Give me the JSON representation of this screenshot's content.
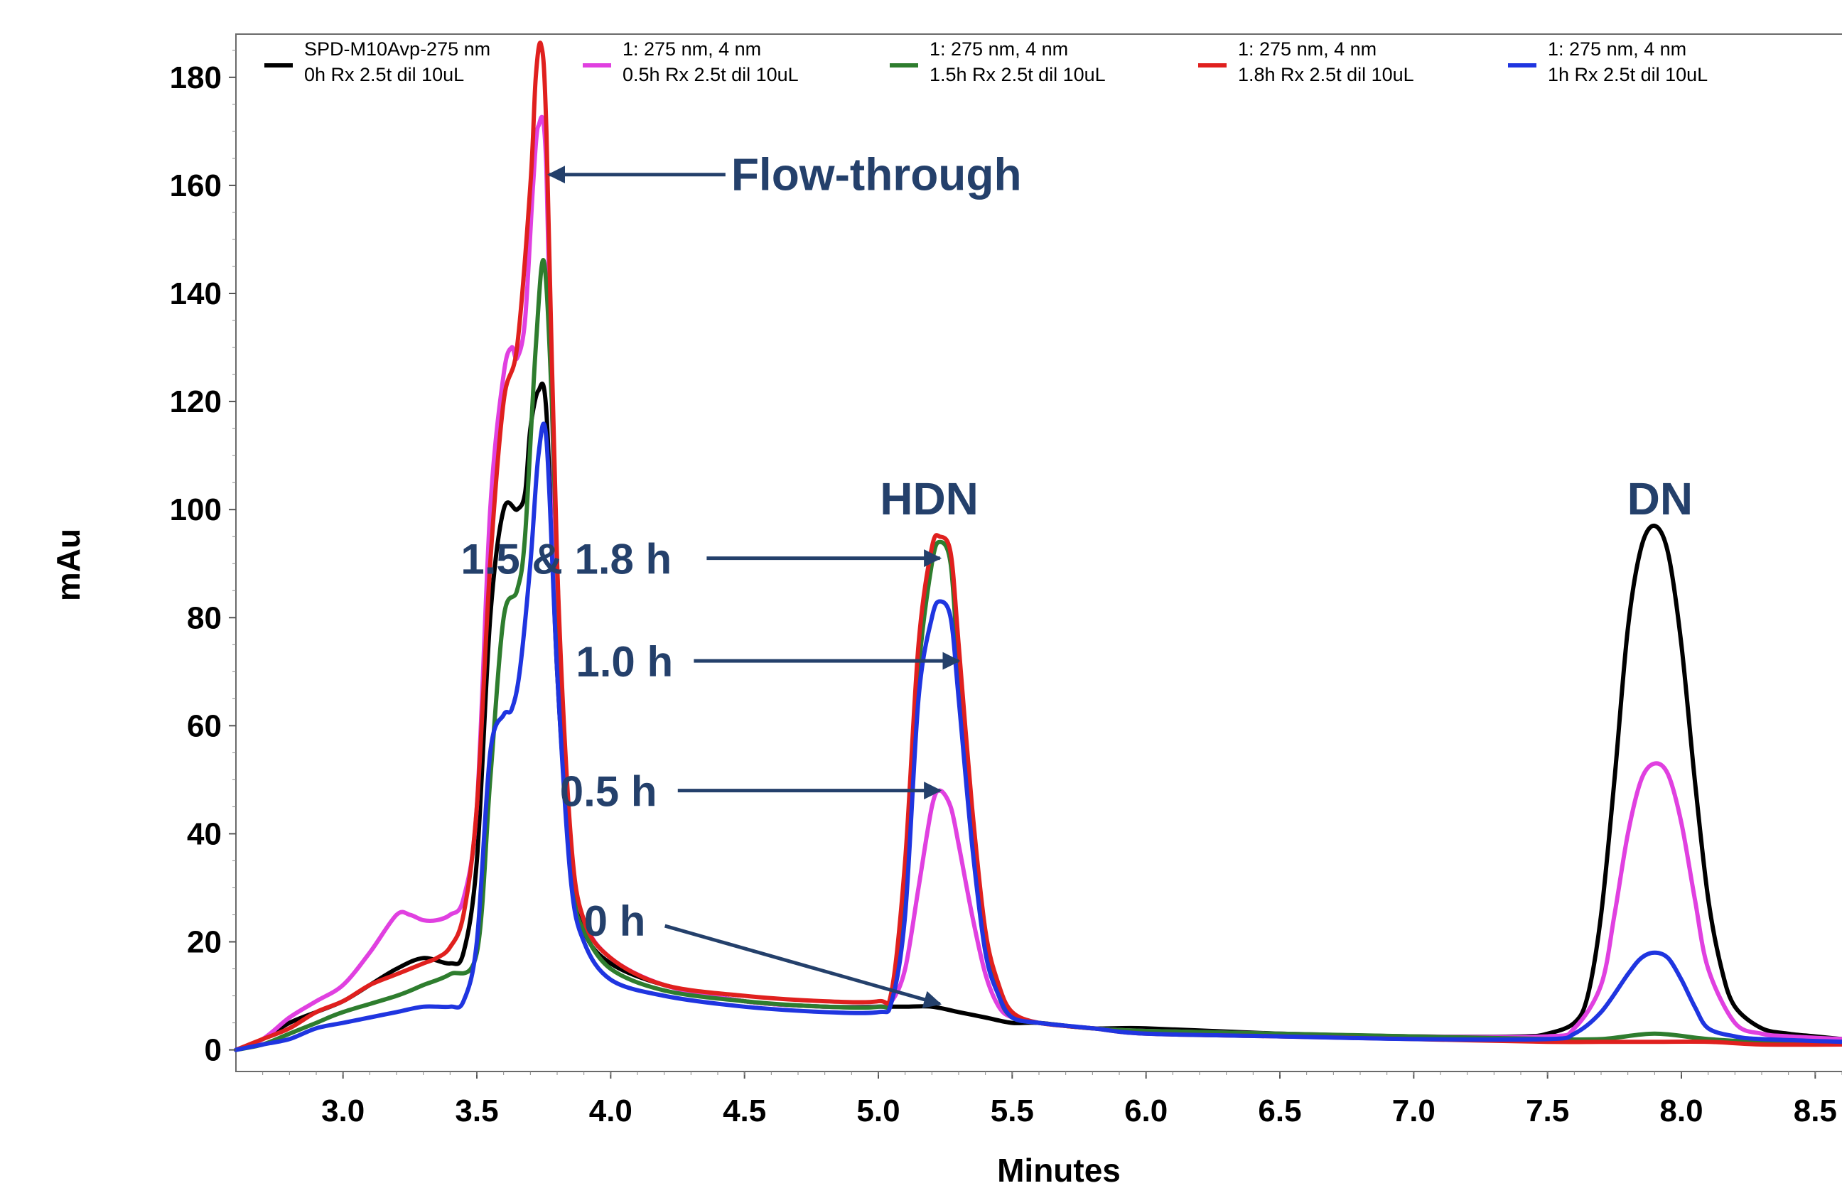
{
  "chart_data": {
    "type": "line",
    "xlabel": "Minutes",
    "ylabel": "mAu",
    "xlim": [
      2.6,
      8.6
    ],
    "ylim": [
      -4,
      188
    ],
    "xticks": [
      "3.0",
      "3.5",
      "4.0",
      "4.5",
      "5.0",
      "5.5",
      "6.0",
      "6.5",
      "7.0",
      "7.5",
      "8.0",
      "8.5"
    ],
    "xtick_values": [
      3.0,
      3.5,
      4.0,
      4.5,
      5.0,
      5.5,
      6.0,
      6.5,
      7.0,
      7.5,
      8.0,
      8.5
    ],
    "yticks": [
      "0",
      "20",
      "40",
      "60",
      "80",
      "100",
      "120",
      "140",
      "160",
      "180"
    ],
    "ytick_values": [
      0,
      20,
      40,
      60,
      80,
      100,
      120,
      140,
      160,
      180
    ],
    "grid": false,
    "legend_position": "top",
    "legend": [
      {
        "line1": "SPD-M10Avp-275 nm",
        "line2": "0h Rx 2.5t dil 10uL",
        "color": "#000000"
      },
      {
        "line1": "1: 275 nm, 4 nm",
        "line2": "0.5h Rx 2.5t dil 10uL",
        "color": "#e040e0"
      },
      {
        "line1": "1: 275 nm, 4 nm",
        "line2": "1.5h Rx 2.5t dil 10uL",
        "color": "#2e7d2e"
      },
      {
        "line1": "1: 275 nm, 4 nm",
        "line2": "1.8h Rx 2.5t dil 10uL",
        "color": "#e0201e"
      },
      {
        "line1": "1: 275 nm, 4 nm",
        "line2": "1h Rx 2.5t dil 10uL",
        "color": "#1f35e0"
      }
    ],
    "series": [
      {
        "color": "#000000",
        "x": [
          2.6,
          2.7,
          2.8,
          2.9,
          3.0,
          3.1,
          3.2,
          3.3,
          3.4,
          3.45,
          3.5,
          3.55,
          3.6,
          3.65,
          3.68,
          3.7,
          3.73,
          3.76,
          3.8,
          3.85,
          3.9,
          4.0,
          4.2,
          4.5,
          4.8,
          5.0,
          5.1,
          5.2,
          5.3,
          5.4,
          5.5,
          5.6,
          5.8,
          6.0,
          6.5,
          7.0,
          7.4,
          7.5,
          7.6,
          7.65,
          7.7,
          7.75,
          7.8,
          7.85,
          7.9,
          7.95,
          8.0,
          8.05,
          8.1,
          8.15,
          8.2,
          8.3,
          8.4,
          8.5,
          8.6
        ],
        "y": [
          0,
          2,
          5,
          7,
          9,
          12,
          15,
          17,
          16,
          18,
          35,
          80,
          100,
          100,
          103,
          115,
          122,
          118,
          70,
          35,
          22,
          16,
          12,
          9,
          8,
          8,
          8,
          8,
          7,
          6,
          5,
          5,
          4,
          4,
          3,
          2.5,
          2.5,
          3,
          5,
          10,
          25,
          50,
          78,
          93,
          97,
          92,
          75,
          50,
          28,
          15,
          8,
          4,
          3,
          2.5,
          2
        ]
      },
      {
        "color": "#e040e0",
        "x": [
          2.6,
          2.7,
          2.8,
          2.9,
          3.0,
          3.1,
          3.2,
          3.25,
          3.3,
          3.35,
          3.4,
          3.45,
          3.5,
          3.55,
          3.6,
          3.63,
          3.65,
          3.68,
          3.71,
          3.73,
          3.76,
          3.8,
          3.85,
          3.9,
          4.0,
          4.2,
          4.5,
          4.8,
          5.0,
          5.05,
          5.1,
          5.15,
          5.2,
          5.23,
          5.27,
          5.3,
          5.35,
          5.4,
          5.45,
          5.5,
          5.6,
          5.8,
          6.0,
          6.5,
          7.0,
          7.5,
          7.6,
          7.7,
          7.75,
          7.8,
          7.85,
          7.9,
          7.95,
          8.0,
          8.05,
          8.1,
          8.2,
          8.3,
          8.4,
          8.6
        ],
        "y": [
          0,
          2,
          6,
          9,
          12,
          18,
          25,
          25,
          24,
          24,
          25,
          28,
          45,
          100,
          125,
          130,
          128,
          135,
          160,
          171,
          163,
          80,
          38,
          24,
          17,
          12,
          9,
          8,
          8,
          9,
          15,
          30,
          45,
          48,
          45,
          38,
          25,
          14,
          8,
          6,
          5,
          4,
          3.5,
          3,
          2.5,
          2.5,
          4,
          12,
          25,
          40,
          50,
          53,
          51,
          42,
          28,
          15,
          5,
          3,
          2.5,
          2
        ]
      },
      {
        "color": "#2e7d2e",
        "x": [
          2.6,
          2.7,
          2.8,
          2.9,
          3.0,
          3.2,
          3.3,
          3.4,
          3.5,
          3.55,
          3.6,
          3.65,
          3.68,
          3.72,
          3.75,
          3.78,
          3.82,
          3.86,
          3.9,
          4.0,
          4.2,
          4.5,
          4.8,
          5.0,
          5.05,
          5.1,
          5.15,
          5.2,
          5.23,
          5.27,
          5.3,
          5.35,
          5.4,
          5.45,
          5.5,
          5.6,
          5.8,
          6.0,
          6.5,
          7.0,
          7.5,
          7.7,
          7.9,
          8.1,
          8.3,
          8.6
        ],
        "y": [
          0,
          1,
          3,
          5,
          7,
          10,
          12,
          14,
          18,
          50,
          80,
          85,
          95,
          130,
          146,
          120,
          60,
          30,
          22,
          15,
          11,
          9,
          8,
          8,
          10,
          30,
          70,
          90,
          94,
          90,
          70,
          40,
          20,
          10,
          6,
          5,
          4,
          3.5,
          3,
          2.5,
          2,
          2,
          3,
          2,
          1.5,
          1.5
        ]
      },
      {
        "color": "#e0201e",
        "x": [
          2.6,
          2.7,
          2.8,
          2.9,
          3.0,
          3.1,
          3.2,
          3.3,
          3.35,
          3.4,
          3.45,
          3.5,
          3.55,
          3.6,
          3.65,
          3.7,
          3.72,
          3.74,
          3.76,
          3.8,
          3.85,
          3.9,
          4.0,
          4.2,
          4.5,
          4.8,
          5.0,
          5.05,
          5.1,
          5.15,
          5.2,
          5.23,
          5.27,
          5.3,
          5.35,
          5.4,
          5.45,
          5.5,
          5.6,
          5.8,
          6.0,
          6.5,
          7.0,
          7.5,
          7.7,
          7.9,
          8.1,
          8.3,
          8.6
        ],
        "y": [
          0,
          2,
          4,
          7,
          9,
          12,
          14,
          16,
          17,
          19,
          25,
          45,
          90,
          120,
          130,
          160,
          180,
          186,
          170,
          90,
          40,
          24,
          17,
          12,
          10,
          9,
          9,
          11,
          35,
          75,
          93,
          95,
          92,
          75,
          45,
          22,
          12,
          7,
          5,
          4,
          3,
          2.5,
          2,
          1.5,
          1.5,
          1.5,
          1.5,
          1,
          1
        ]
      },
      {
        "color": "#1f35e0",
        "x": [
          2.6,
          2.7,
          2.8,
          2.9,
          3.0,
          3.1,
          3.2,
          3.3,
          3.4,
          3.45,
          3.5,
          3.55,
          3.6,
          3.63,
          3.66,
          3.7,
          3.73,
          3.76,
          3.8,
          3.85,
          3.9,
          4.0,
          4.2,
          4.5,
          4.8,
          5.0,
          5.05,
          5.1,
          5.15,
          5.2,
          5.23,
          5.27,
          5.3,
          5.35,
          5.4,
          5.45,
          5.5,
          5.6,
          5.8,
          6.0,
          6.5,
          7.0,
          7.5,
          7.6,
          7.7,
          7.8,
          7.85,
          7.9,
          7.95,
          8.0,
          8.05,
          8.1,
          8.2,
          8.3,
          8.6
        ],
        "y": [
          0,
          1,
          2,
          4,
          5,
          6,
          7,
          8,
          8,
          9,
          20,
          55,
          62,
          63,
          70,
          90,
          110,
          113,
          70,
          32,
          20,
          13,
          10,
          8,
          7,
          7,
          9,
          25,
          65,
          80,
          83,
          80,
          65,
          38,
          18,
          10,
          6,
          5,
          4,
          3,
          2.5,
          2,
          2,
          3,
          7,
          14,
          17,
          18,
          17,
          13,
          8,
          4,
          2.5,
          2,
          1.5
        ]
      }
    ],
    "annotations": [
      {
        "text": "Flow-through",
        "x": 4.45,
        "y": 162,
        "arrow_to": [
          3.77,
          162
        ]
      },
      {
        "text": "HDN",
        "x": 5.19,
        "y": 102
      },
      {
        "text": "DN",
        "x": 7.92,
        "y": 102
      },
      {
        "text": "1.5 & 1.8 h",
        "x": 3.44,
        "y": 91,
        "arrow_to": [
          5.23,
          91
        ]
      },
      {
        "text": "1.0 h",
        "x": 3.87,
        "y": 72,
        "arrow_to": [
          5.3,
          72
        ]
      },
      {
        "text": "0.5 h",
        "x": 3.81,
        "y": 48,
        "arrow_to": [
          5.23,
          48
        ]
      },
      {
        "text": "0 h",
        "x": 3.9,
        "y": 24,
        "arrow_to": [
          5.23,
          8.5
        ]
      }
    ]
  }
}
